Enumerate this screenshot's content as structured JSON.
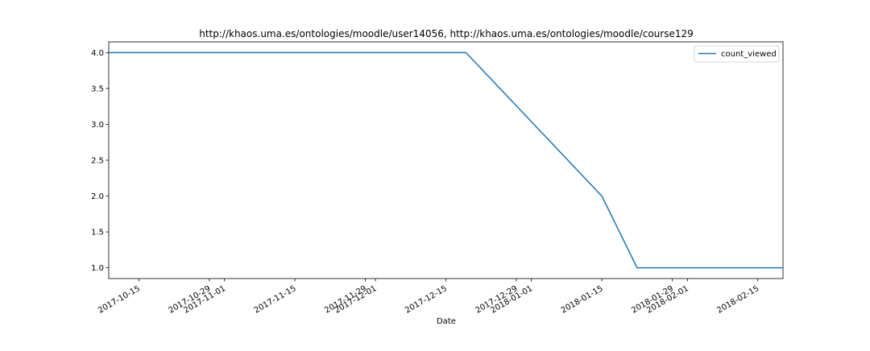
{
  "chart_data": {
    "type": "line",
    "title": "http://khaos.uma.es/ontologies/moodle/user14056, http://khaos.uma.es/ontologies/moodle/course129",
    "xlabel": "Date",
    "ylabel": "",
    "x_axis_type": "date",
    "xlim": [
      "2017-10-09",
      "2018-02-20"
    ],
    "ylim": [
      0.85,
      4.15
    ],
    "x_ticks": [
      "2017-10-15",
      "2017-10-29",
      "2017-11-01",
      "2017-11-15",
      "2017-11-29",
      "2017-12-01",
      "2017-12-15",
      "2017-12-29",
      "2018-01-01",
      "2018-01-15",
      "2018-01-29",
      "2018-02-01",
      "2018-02-15"
    ],
    "y_ticks": [
      "1.0",
      "1.5",
      "2.0",
      "2.5",
      "3.0",
      "3.5",
      "4.0"
    ],
    "grid": false,
    "legend_position": "top-right",
    "series": [
      {
        "name": "count_viewed",
        "color": "#1f77b4",
        "x": [
          "2017-10-09",
          "2017-12-19",
          "2018-01-15",
          "2018-01-22",
          "2018-02-20"
        ],
        "y": [
          4,
          4,
          2,
          1,
          1
        ]
      }
    ]
  }
}
